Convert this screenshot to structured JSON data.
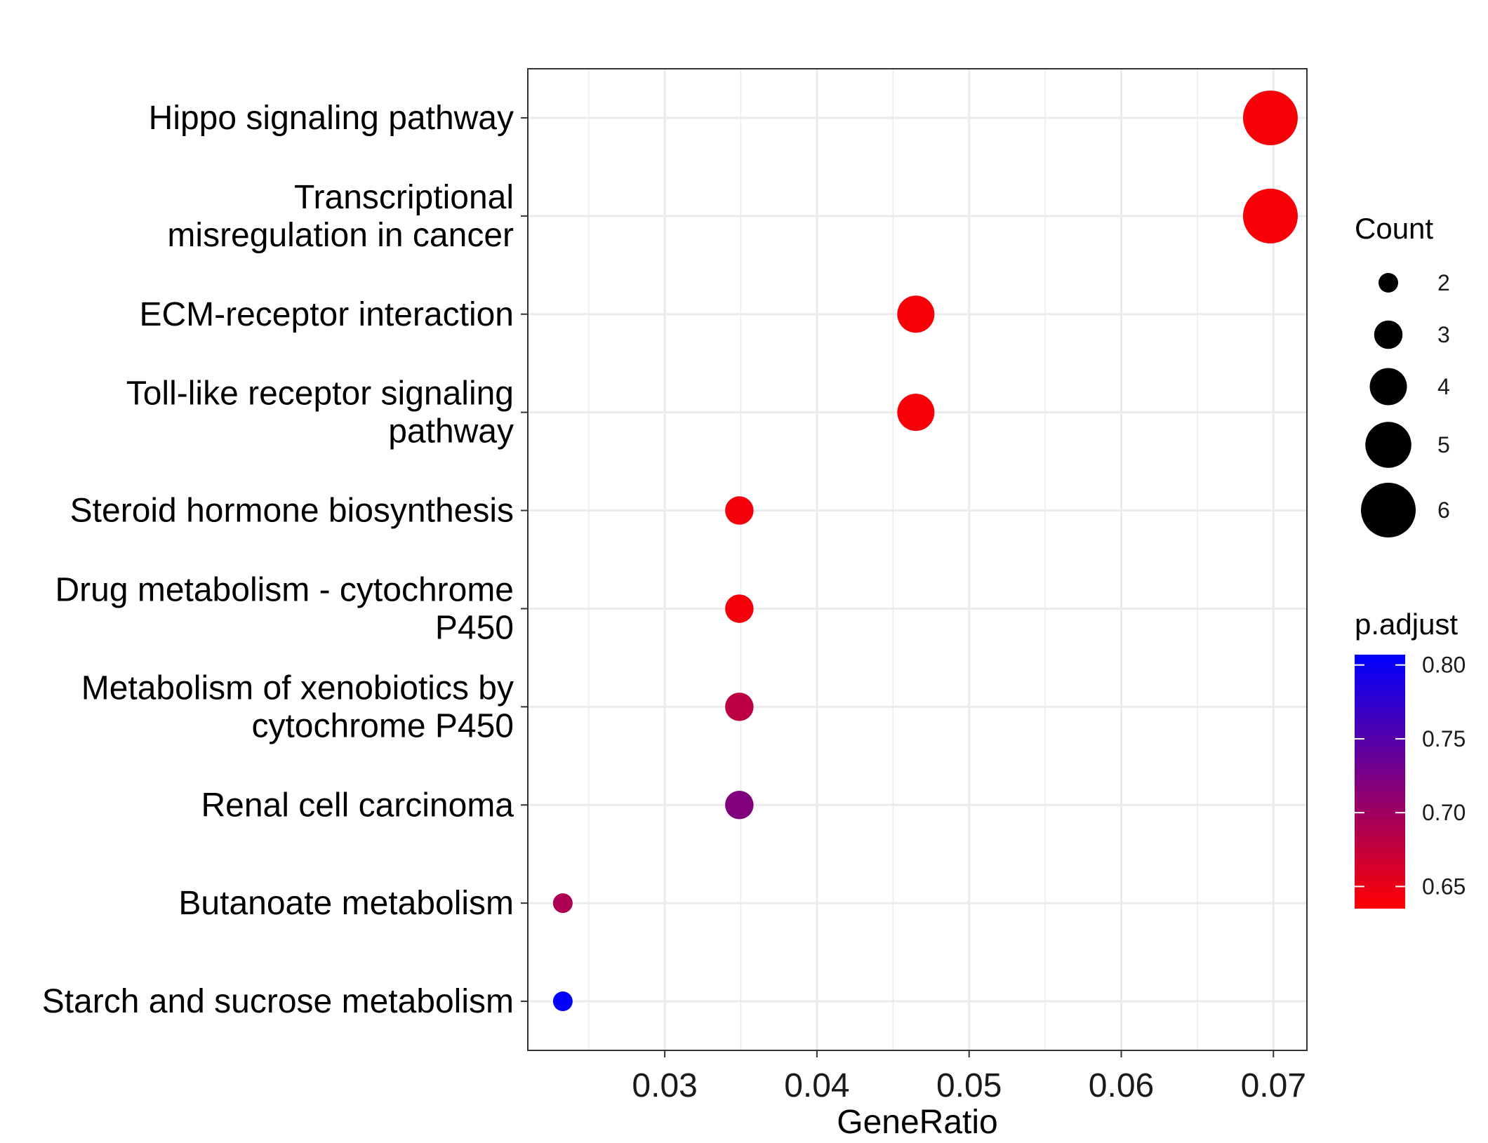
{
  "chart_data": {
    "type": "scatter",
    "xlabel": "GeneRatio",
    "ylabel": "",
    "title": "",
    "xlim": [
      0.021,
      0.0722
    ],
    "xticks": [
      0.03,
      0.04,
      0.05,
      0.06,
      0.07
    ],
    "xtick_labels": [
      "0.03",
      "0.04",
      "0.05",
      "0.06",
      "0.07"
    ],
    "grid": true,
    "legend_position": "right",
    "categories": [
      {
        "lines": [
          "Hippo signaling pathway"
        ]
      },
      {
        "lines": [
          "Transcriptional",
          "misregulation in cancer"
        ]
      },
      {
        "lines": [
          "ECM-receptor interaction"
        ]
      },
      {
        "lines": [
          "Toll-like receptor signaling",
          "pathway"
        ]
      },
      {
        "lines": [
          "Steroid hormone biosynthesis"
        ]
      },
      {
        "lines": [
          "Drug metabolism - cytochrome",
          "P450"
        ]
      },
      {
        "lines": [
          "Metabolism of xenobiotics by",
          "cytochrome P450"
        ]
      },
      {
        "lines": [
          "Renal cell carcinoma"
        ]
      },
      {
        "lines": [
          "Butanoate metabolism"
        ]
      },
      {
        "lines": [
          "Starch and sucrose metabolism"
        ]
      }
    ],
    "points": [
      {
        "category": "Hippo signaling pathway",
        "x": 0.0698,
        "count": 6,
        "p_adjust": 0.64
      },
      {
        "category": "Transcriptional misregulation in cancer",
        "x": 0.0698,
        "count": 6,
        "p_adjust": 0.64
      },
      {
        "category": "ECM-receptor interaction",
        "x": 0.0465,
        "count": 4,
        "p_adjust": 0.64
      },
      {
        "category": "Toll-like receptor signaling pathway",
        "x": 0.0465,
        "count": 4,
        "p_adjust": 0.64
      },
      {
        "category": "Steroid hormone biosynthesis",
        "x": 0.0349,
        "count": 3,
        "p_adjust": 0.642
      },
      {
        "category": "Drug metabolism - cytochrome P450",
        "x": 0.0349,
        "count": 3,
        "p_adjust": 0.642
      },
      {
        "category": "Metabolism of xenobiotics by cytochrome P450",
        "x": 0.0349,
        "count": 3,
        "p_adjust": 0.68
      },
      {
        "category": "Renal cell carcinoma",
        "x": 0.0349,
        "count": 3,
        "p_adjust": 0.72
      },
      {
        "category": "Butanoate metabolism",
        "x": 0.0233,
        "count": 2,
        "p_adjust": 0.69
      },
      {
        "category": "Starch and sucrose metabolism",
        "x": 0.0233,
        "count": 2,
        "p_adjust": 0.805
      }
    ],
    "size_legend": {
      "title": "Count",
      "values": [
        2,
        3,
        4,
        5,
        6
      ],
      "labels": [
        "2",
        "3",
        "4",
        "5",
        "6"
      ]
    },
    "color_legend": {
      "title": "p.adjust",
      "min": 0.635,
      "max": 0.807,
      "low_color": "#FF0000",
      "high_color": "#0000FF",
      "ticks": [
        0.65,
        0.7,
        0.75,
        0.8
      ],
      "tick_labels": [
        "0.65",
        "0.70",
        "0.75",
        "0.80"
      ]
    },
    "colors": {
      "grid": "#EBEBEB",
      "panel_border": "#333333",
      "point_fill_reference": "#000000"
    }
  }
}
